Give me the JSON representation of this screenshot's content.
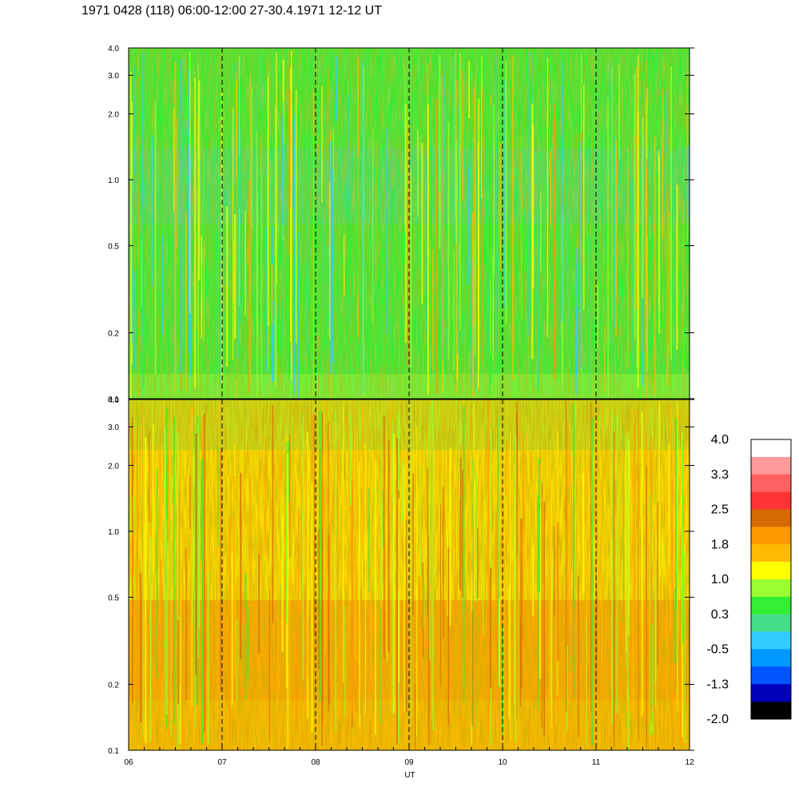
{
  "header": {
    "title": "1971 0428 (118) 06:00-12:00 27-30.4.1971  12-12 UT"
  },
  "chart_data": {
    "type": "heatmap",
    "title": "1971 0428 (118) 06:00-12:00 27-30.4.1971  12-12 UT",
    "xlabel": "UT",
    "x_ticks": [
      "06",
      "07",
      "08",
      "09",
      "10",
      "11",
      "12"
    ],
    "xlim": [
      6,
      12
    ],
    "hour_marker_lines": [
      7,
      8,
      9,
      10,
      11
    ],
    "y_scale": "log",
    "ylim": [
      0.1,
      4.0
    ],
    "y_ticks": [
      {
        "value": 0.1,
        "label": "0.1"
      },
      {
        "value": 0.2,
        "label": "0.2"
      },
      {
        "value": 0.5,
        "label": "0.5"
      },
      {
        "value": 1.0,
        "label": "1.0"
      },
      {
        "value": 2.0,
        "label": "2.0"
      },
      {
        "value": 3.0,
        "label": "3.0"
      },
      {
        "value": 4.0,
        "label": "4.0"
      }
    ],
    "panels": [
      {
        "position": "top",
        "dominant_level": 0.3,
        "level_range": [
          -0.5,
          1.8
        ]
      },
      {
        "position": "bottom",
        "dominant_level": 1.5,
        "level_range": [
          0.3,
          2.5
        ]
      }
    ],
    "colorbar": {
      "labels": [
        "4.0",
        "3.3",
        "2.5",
        "1.8",
        "1.0",
        "0.3",
        "-0.5",
        "-1.3",
        "-2.0"
      ],
      "colors": [
        "#ffffff",
        "#ff9a9a",
        "#ff6060",
        "#ff3333",
        "#d56a00",
        "#ff9900",
        "#ffbb00",
        "#ffff00",
        "#99ff33",
        "#33ee33",
        "#44dd88",
        "#33ccff",
        "#0099ff",
        "#0055ff",
        "#0000bb",
        "#000000"
      ]
    }
  }
}
